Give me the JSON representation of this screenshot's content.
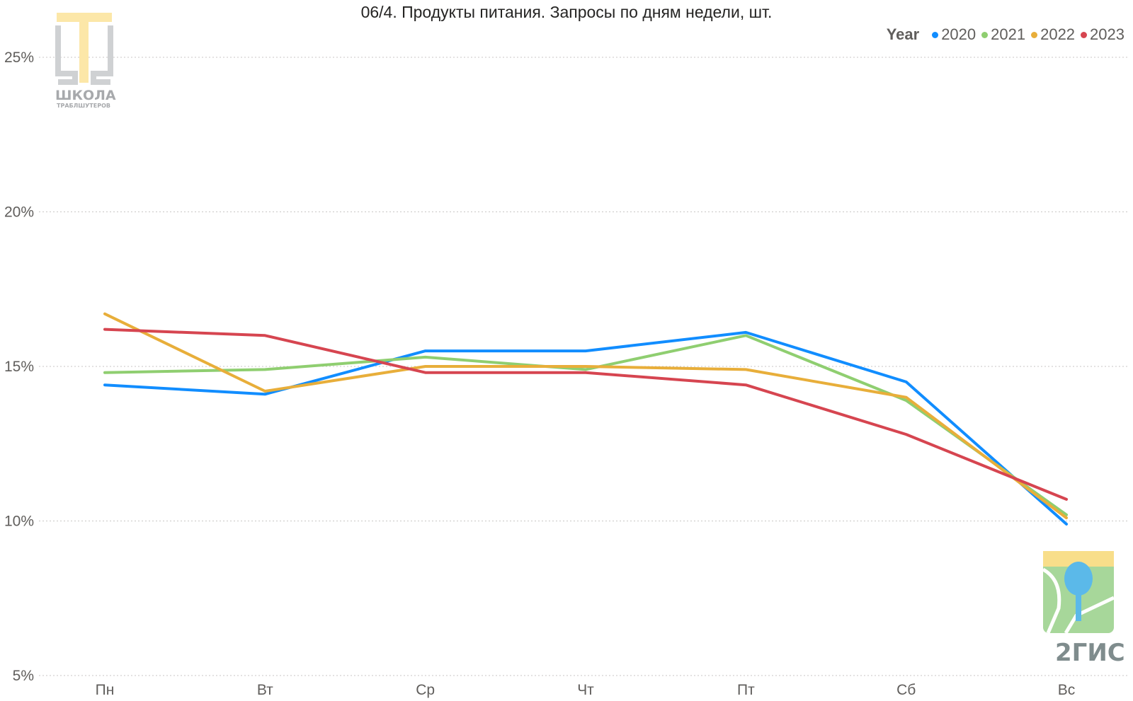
{
  "chart_data": {
    "type": "line",
    "title": "06/4. Продукты питания. Запросы по дням недели, шт.",
    "legend_title": "Year",
    "legend_position": "top-right",
    "categories": [
      "Пн",
      "Вт",
      "Ср",
      "Чт",
      "Пт",
      "Сб",
      "Вс"
    ],
    "y_ticks": [
      "25%",
      "20%",
      "15%",
      "10%",
      "5%"
    ],
    "y_tick_values": [
      25,
      20,
      15,
      10,
      5
    ],
    "ylim": [
      5,
      25
    ],
    "grid": true,
    "series": [
      {
        "name": "2020",
        "color": "#118dff",
        "values": [
          14.4,
          14.1,
          15.5,
          15.5,
          16.1,
          14.5,
          9.9
        ]
      },
      {
        "name": "2021",
        "color": "#8fce70",
        "values": [
          14.8,
          14.9,
          15.3,
          14.9,
          16.0,
          13.9,
          10.2
        ]
      },
      {
        "name": "2022",
        "color": "#e8ae3a",
        "values": [
          16.7,
          14.2,
          15.0,
          15.0,
          14.9,
          14.0,
          10.1
        ]
      },
      {
        "name": "2023",
        "color": "#d64550",
        "values": [
          16.2,
          16.0,
          14.8,
          14.8,
          14.4,
          12.8,
          10.7
        ]
      }
    ]
  },
  "logos": {
    "school": {
      "name": "ШКОЛА",
      "subtitle": "ТРАБЛШУТЕРОВ"
    },
    "gis": {
      "name": "2ГИС"
    }
  }
}
